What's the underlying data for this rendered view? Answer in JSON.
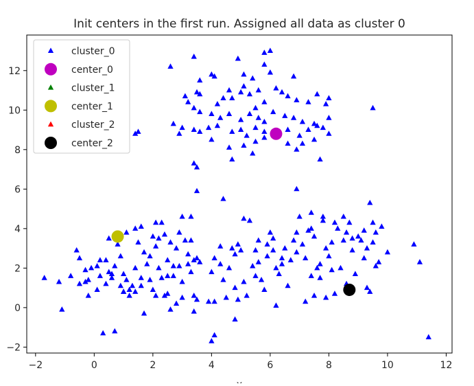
{
  "chart_data": {
    "type": "scatter",
    "title": "Init centers in the first run. Assigned all data as cluster 0",
    "xlabel": "x",
    "ylabel": "",
    "xlim": [
      -2.3,
      12.2
    ],
    "ylim": [
      -2.3,
      13.8
    ],
    "xticks": [
      -2,
      0,
      2,
      4,
      6,
      8,
      10,
      12
    ],
    "yticks": [
      -2,
      0,
      2,
      4,
      6,
      8,
      10,
      12
    ],
    "xtick_labels": [
      "−2",
      "0",
      "2",
      "4",
      "6",
      "8",
      "10",
      "12"
    ],
    "ytick_labels": [
      "−2",
      "0",
      "2",
      "4",
      "6",
      "8",
      "10",
      "12"
    ],
    "grid": false,
    "legend_position": "top-left",
    "series": [
      {
        "name": "cluster_0",
        "marker": "triangle",
        "color": "#0000ff",
        "points": [
          [
            2.6,
            12.2
          ],
          [
            3.4,
            12.7
          ],
          [
            3.6,
            11.5
          ],
          [
            4.0,
            11.8
          ],
          [
            4.1,
            11.7
          ],
          [
            4.9,
            12.6
          ],
          [
            5.1,
            11.8
          ],
          [
            5.4,
            11.6
          ],
          [
            5.8,
            12.3
          ],
          [
            6.0,
            11.9
          ],
          [
            6.0,
            13.0
          ],
          [
            5.8,
            12.9
          ],
          [
            6.8,
            11.7
          ],
          [
            3.1,
            10.7
          ],
          [
            3.2,
            10.4
          ],
          [
            3.5,
            10.9
          ],
          [
            3.6,
            10.8
          ],
          [
            4.2,
            10.3
          ],
          [
            4.4,
            10.6
          ],
          [
            4.6,
            11.0
          ],
          [
            4.7,
            10.6
          ],
          [
            5.0,
            10.9
          ],
          [
            5.1,
            11.2
          ],
          [
            5.3,
            10.8
          ],
          [
            5.6,
            11.0
          ],
          [
            5.8,
            10.4
          ],
          [
            6.2,
            11.1
          ],
          [
            6.4,
            10.9
          ],
          [
            6.6,
            10.7
          ],
          [
            6.9,
            10.5
          ],
          [
            7.3,
            10.4
          ],
          [
            7.6,
            10.8
          ],
          [
            7.9,
            10.3
          ],
          [
            8.0,
            10.6
          ],
          [
            9.5,
            10.1
          ],
          [
            3.4,
            10.1
          ],
          [
            3.6,
            9.9
          ],
          [
            4.0,
            9.8
          ],
          [
            4.3,
            9.6
          ],
          [
            4.6,
            9.8
          ],
          [
            5.0,
            9.5
          ],
          [
            5.3,
            9.8
          ],
          [
            5.5,
            10.1
          ],
          [
            5.6,
            9.6
          ],
          [
            5.8,
            9.4
          ],
          [
            6.1,
            9.9
          ],
          [
            6.5,
            9.7
          ],
          [
            6.8,
            9.6
          ],
          [
            7.1,
            9.4
          ],
          [
            7.5,
            9.3
          ],
          [
            7.8,
            9.1
          ],
          [
            8.0,
            9.6
          ],
          [
            3.0,
            9.1
          ],
          [
            3.4,
            9.0
          ],
          [
            3.6,
            8.9
          ],
          [
            3.9,
            9.1
          ],
          [
            4.2,
            9.2
          ],
          [
            4.7,
            8.9
          ],
          [
            5.0,
            9.0
          ],
          [
            5.2,
            8.7
          ],
          [
            5.5,
            9.1
          ],
          [
            5.8,
            8.9
          ],
          [
            6.6,
            9.0
          ],
          [
            7.0,
            8.7
          ],
          [
            7.3,
            9.0
          ],
          [
            7.6,
            9.2
          ],
          [
            8.0,
            8.8
          ],
          [
            2.7,
            9.3
          ],
          [
            2.9,
            8.8
          ],
          [
            1.4,
            8.8
          ],
          [
            1.5,
            8.9
          ],
          [
            4.0,
            8.5
          ],
          [
            4.6,
            8.1
          ],
          [
            5.1,
            8.2
          ],
          [
            5.5,
            8.4
          ],
          [
            5.8,
            8.6
          ],
          [
            6.6,
            8.3
          ],
          [
            6.9,
            8.0
          ],
          [
            7.1,
            8.3
          ],
          [
            7.5,
            8.5
          ],
          [
            3.4,
            7.3
          ],
          [
            3.5,
            7.1
          ],
          [
            4.7,
            7.5
          ],
          [
            5.4,
            7.8
          ],
          [
            7.7,
            7.5
          ],
          [
            3.5,
            5.9
          ],
          [
            4.4,
            5.5
          ],
          [
            6.9,
            6.0
          ],
          [
            -1.7,
            1.5
          ],
          [
            -1.2,
            1.3
          ],
          [
            -1.1,
            -0.1
          ],
          [
            -0.8,
            1.6
          ],
          [
            -0.6,
            2.9
          ],
          [
            -0.5,
            2.5
          ],
          [
            -0.5,
            1.2
          ],
          [
            -0.3,
            1.9
          ],
          [
            -0.2,
            1.4
          ],
          [
            -0.2,
            0.6
          ],
          [
            -0.1,
            2.0
          ],
          [
            0.1,
            2.1
          ],
          [
            0.1,
            0.9
          ],
          [
            0.2,
            1.6
          ],
          [
            0.4,
            1.2
          ],
          [
            0.4,
            2.4
          ],
          [
            0.5,
            3.5
          ],
          [
            0.6,
            1.5
          ],
          [
            0.6,
            1.7
          ],
          [
            0.7,
            2.1
          ],
          [
            0.8,
            3.2
          ],
          [
            0.9,
            2.6
          ],
          [
            1.0,
            1.7
          ],
          [
            1.0,
            0.8
          ],
          [
            1.1,
            3.8
          ],
          [
            1.2,
            0.6
          ],
          [
            1.3,
            1.1
          ],
          [
            1.4,
            2.0
          ],
          [
            1.5,
            3.3
          ],
          [
            1.6,
            1.5
          ],
          [
            1.6,
            4.1
          ],
          [
            1.7,
            2.8
          ],
          [
            1.8,
            2.2
          ],
          [
            1.9,
            1.4
          ],
          [
            2.0,
            0.9
          ],
          [
            2.0,
            3.6
          ],
          [
            2.1,
            4.3
          ],
          [
            2.2,
            3.5
          ],
          [
            2.2,
            2.0
          ],
          [
            2.3,
            1.5
          ],
          [
            2.3,
            4.3
          ],
          [
            2.4,
            3.7
          ],
          [
            2.5,
            2.4
          ],
          [
            2.5,
            1.6
          ],
          [
            2.5,
            0.7
          ],
          [
            2.6,
            3.3
          ],
          [
            2.7,
            2.1
          ],
          [
            2.7,
            1.6
          ],
          [
            2.8,
            3.0
          ],
          [
            2.9,
            3.8
          ],
          [
            3.0,
            4.6
          ],
          [
            3.1,
            3.4
          ],
          [
            3.2,
            2.7
          ],
          [
            3.2,
            2.2
          ],
          [
            3.3,
            1.8
          ],
          [
            3.3,
            3.4
          ],
          [
            3.4,
            2.4
          ],
          [
            3.5,
            2.5
          ],
          [
            3.5,
            0.4
          ],
          [
            3.3,
            4.6
          ],
          [
            2.8,
            0.2
          ],
          [
            3.0,
            0.5
          ],
          [
            2.1,
            0.6
          ],
          [
            2.4,
            0.6
          ],
          [
            2.6,
            -0.1
          ],
          [
            1.7,
            -0.3
          ],
          [
            1.6,
            1.1
          ],
          [
            1.4,
            0.8
          ],
          [
            1.2,
            0.9
          ],
          [
            1.0,
            0.8
          ],
          [
            0.9,
            1.1
          ],
          [
            0.3,
            -1.3
          ],
          [
            0.7,
            -1.2
          ],
          [
            1.4,
            4.0
          ],
          [
            4.0,
            1.8
          ],
          [
            4.1,
            2.5
          ],
          [
            4.1,
            0.3
          ],
          [
            4.3,
            2.2
          ],
          [
            4.4,
            1.4
          ],
          [
            4.5,
            0.5
          ],
          [
            4.6,
            2.0
          ],
          [
            4.7,
            3.0
          ],
          [
            4.8,
            2.7
          ],
          [
            4.8,
            1.0
          ],
          [
            4.9,
            3.2
          ],
          [
            5.0,
            2.9
          ],
          [
            5.1,
            1.3
          ],
          [
            5.1,
            4.5
          ],
          [
            5.2,
            0.6
          ],
          [
            5.3,
            4.4
          ],
          [
            5.5,
            1.6
          ],
          [
            5.6,
            3.4
          ],
          [
            5.6,
            2.3
          ],
          [
            5.7,
            1.4
          ],
          [
            5.8,
            0.9
          ],
          [
            5.9,
            2.6
          ],
          [
            6.0,
            3.8
          ],
          [
            6.1,
            2.9
          ],
          [
            6.1,
            3.5
          ],
          [
            6.2,
            0.1
          ],
          [
            6.3,
            1.7
          ],
          [
            6.4,
            2.2
          ],
          [
            6.5,
            3.0
          ],
          [
            6.6,
            1.1
          ],
          [
            6.8,
            3.4
          ],
          [
            6.9,
            2.8
          ],
          [
            7.0,
            4.6
          ],
          [
            7.1,
            3.2
          ],
          [
            7.2,
            2.5
          ],
          [
            7.3,
            3.9
          ],
          [
            7.4,
            1.6
          ],
          [
            7.4,
            4.0
          ],
          [
            7.5,
            0.6
          ],
          [
            7.6,
            2.0
          ],
          [
            7.7,
            2.2
          ],
          [
            7.8,
            4.6
          ],
          [
            7.9,
            3.0
          ],
          [
            8.0,
            2.6
          ],
          [
            8.1,
            3.3
          ],
          [
            8.1,
            1.9
          ],
          [
            8.2,
            4.3
          ],
          [
            8.2,
            0.7
          ],
          [
            8.3,
            4.0
          ],
          [
            8.4,
            2.0
          ],
          [
            8.5,
            3.4
          ],
          [
            8.6,
            1.2
          ],
          [
            8.6,
            3.8
          ],
          [
            8.7,
            4.3
          ],
          [
            8.8,
            3.5
          ],
          [
            8.9,
            1.7
          ],
          [
            9.0,
            3.6
          ],
          [
            9.2,
            3.9
          ],
          [
            9.2,
            2.5
          ],
          [
            9.3,
            1.0
          ],
          [
            9.3,
            3.0
          ],
          [
            9.4,
            0.8
          ],
          [
            9.5,
            4.3
          ],
          [
            9.5,
            3.3
          ],
          [
            9.6,
            2.1
          ],
          [
            9.7,
            2.3
          ],
          [
            9.8,
            4.1
          ],
          [
            10.0,
            2.8
          ],
          [
            10.9,
            3.2
          ],
          [
            11.1,
            2.3
          ],
          [
            11.4,
            -1.5
          ],
          [
            4.1,
            -1.4
          ],
          [
            4.0,
            -1.7
          ],
          [
            4.8,
            -0.6
          ],
          [
            3.9,
            0.3
          ],
          [
            3.4,
            -0.2
          ],
          [
            7.4,
            4.8
          ],
          [
            7.8,
            4.4
          ],
          [
            8.5,
            4.6
          ],
          [
            9.4,
            5.3
          ],
          [
            6.9,
            3.8
          ],
          [
            6.4,
            2.5
          ],
          [
            5.5,
            2.9
          ],
          [
            4.9,
            0.4
          ],
          [
            3.4,
            0.6
          ],
          [
            3.6,
            2.3
          ],
          [
            0.5,
            1.8
          ],
          [
            -0.3,
            1.3
          ],
          [
            0.2,
            2.4
          ],
          [
            1.1,
            1.4
          ],
          [
            1.9,
            2.6
          ],
          [
            2.1,
            3.1
          ],
          [
            2.9,
            2.1
          ],
          [
            3.0,
            1.3
          ],
          [
            7.5,
            3.6
          ],
          [
            8.8,
            2.9
          ],
          [
            9.1,
            3.4
          ],
          [
            9.6,
            3.8
          ],
          [
            7.7,
            1.5
          ],
          [
            6.7,
            2.4
          ],
          [
            6.2,
            2.0
          ],
          [
            5.9,
            3.2
          ],
          [
            5.4,
            2.1
          ],
          [
            4.3,
            3.1
          ],
          [
            7.2,
            0.3
          ],
          [
            7.9,
            0.5
          ]
        ]
      },
      {
        "name": "center_0",
        "marker": "circle",
        "color": "#bf00bf",
        "points": [
          [
            6.2,
            8.8
          ]
        ]
      },
      {
        "name": "cluster_1",
        "marker": "triangle",
        "color": "#008000",
        "points": []
      },
      {
        "name": "center_1",
        "marker": "circle",
        "color": "#bfbf00",
        "points": [
          [
            0.8,
            3.6
          ]
        ]
      },
      {
        "name": "cluster_2",
        "marker": "triangle",
        "color": "#ff0000",
        "points": []
      },
      {
        "name": "center_2",
        "marker": "circle",
        "color": "#000000",
        "points": [
          [
            8.7,
            0.9
          ]
        ]
      }
    ]
  }
}
